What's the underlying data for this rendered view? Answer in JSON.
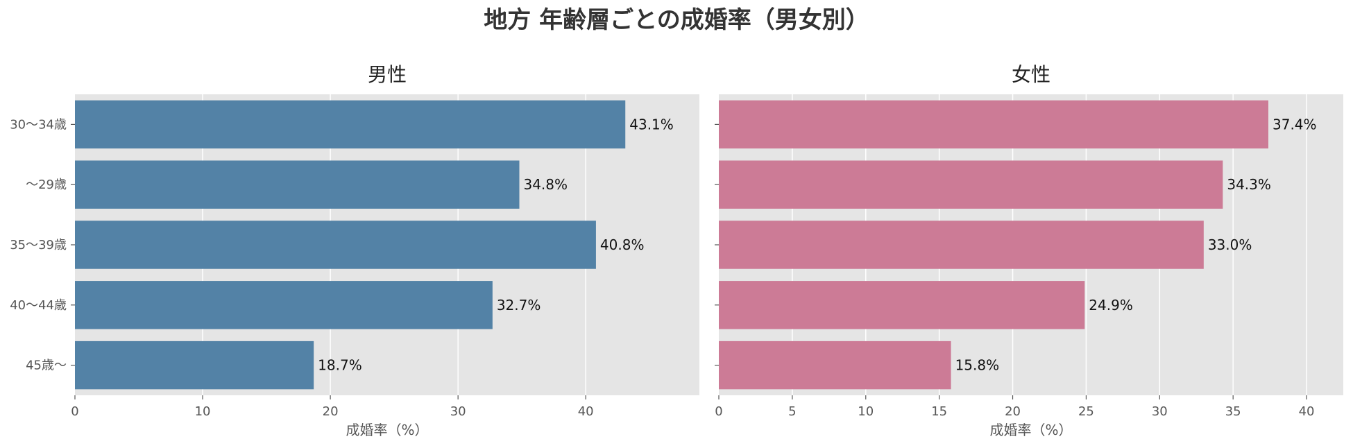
{
  "chart_data": {
    "type": "bar",
    "orientation": "horizontal",
    "title": "地方 年齢層ごとの成婚率（男女別）",
    "categories": [
      "30〜34歳",
      "〜29歳",
      "35〜39歳",
      "40〜44歳",
      "45歳〜"
    ],
    "grid": true,
    "panels": [
      {
        "title": "男性",
        "xlabel": "成婚率（%）",
        "xlim": [
          0,
          48.9
        ],
        "xticks": [
          0,
          10,
          20,
          30,
          40
        ],
        "color": "#5382a6",
        "values": [
          43.1,
          34.8,
          40.8,
          32.7,
          18.7
        ],
        "labels": [
          "43.1%",
          "34.8%",
          "40.8%",
          "32.7%",
          "18.7%"
        ]
      },
      {
        "title": "女性",
        "xlabel": "成婚率（%）",
        "xlim": [
          0,
          42.5
        ],
        "xticks": [
          0,
          5,
          10,
          15,
          20,
          25,
          30,
          35,
          40
        ],
        "color": "#cc7b96",
        "values": [
          37.4,
          34.3,
          33.0,
          24.9,
          15.8
        ],
        "labels": [
          "37.4%",
          "34.3%",
          "33.0%",
          "24.9%",
          "15.8%"
        ]
      }
    ]
  }
}
